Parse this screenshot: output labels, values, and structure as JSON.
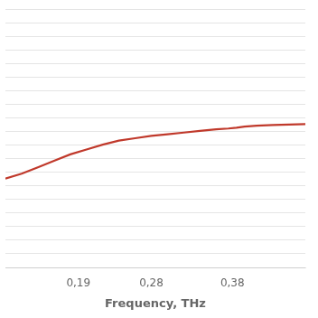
{
  "chart_data": {
    "type": "line",
    "x_label": "Frequency, THz",
    "x": [
      0.1,
      0.12,
      0.14,
      0.16,
      0.18,
      0.2,
      0.22,
      0.24,
      0.26,
      0.28,
      0.3,
      0.32,
      0.34,
      0.36,
      0.375,
      0.385,
      0.395,
      0.41,
      0.43,
      0.45,
      0.47
    ],
    "values": [
      0.55,
      0.58,
      0.62,
      0.66,
      0.7,
      0.73,
      0.76,
      0.785,
      0.8,
      0.815,
      0.825,
      0.835,
      0.845,
      0.855,
      0.86,
      0.865,
      0.872,
      0.878,
      0.882,
      0.885,
      0.887
    ],
    "color": "#c0392b",
    "xlim": [
      0.1,
      0.47
    ],
    "xticks": [
      {
        "value": 0.19,
        "label": "0,19"
      },
      {
        "value": 0.28,
        "label": "0,28"
      },
      {
        "value": 0.38,
        "label": "0,38"
      }
    ],
    "ylim": [
      0.0,
      1.6
    ],
    "yticks": [
      0.0,
      0.08421052631578947,
      0.16842105263157894,
      0.25263157894736843,
      0.3368421052631579,
      0.42105263157894735,
      0.5052631578947369,
      0.5894736842105263,
      0.6736842105263158,
      0.7578947368421053,
      0.8421052631578947,
      0.9263157894736842,
      1.0105263157894737,
      1.0947368421052632,
      1.1789473684210525,
      1.263157894736842,
      1.3473684210526315,
      1.431578947368421,
      1.5157894736842106,
      1.6
    ],
    "grid": "y",
    "tick_labels": "x"
  }
}
